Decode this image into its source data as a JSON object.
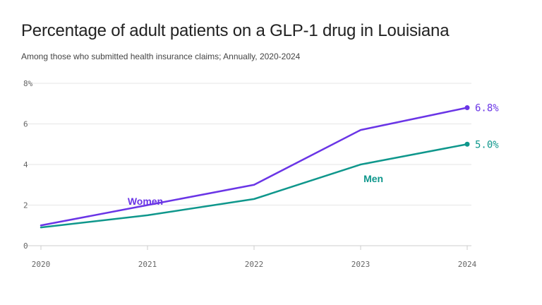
{
  "header": {
    "title": "Percentage of adult patients on a GLP-1 drug in Louisiana",
    "subtitle": "Among those who submitted health insurance claims; Annually, 2020-2024"
  },
  "chart_data": {
    "type": "line",
    "title": "Percentage of adult patients on a GLP-1 drug in Louisiana",
    "subtitle": "Among those who submitted health insurance claims; Annually, 2020-2024",
    "x": [
      2020,
      2021,
      2022,
      2023,
      2024
    ],
    "x_tick_labels": [
      "2020",
      "2021",
      "2022",
      "2023",
      "2024"
    ],
    "y_tick_labels": [
      "0",
      "2",
      "4",
      "6",
      "8%"
    ],
    "ylim": [
      0,
      8
    ],
    "y_ticks": [
      0,
      2,
      4,
      6,
      8
    ],
    "grid": true,
    "series": [
      {
        "name": "Women",
        "color": "#6a35e6",
        "values": [
          1.0,
          2.0,
          3.0,
          5.7,
          6.8
        ],
        "end_label": "6.8%"
      },
      {
        "name": "Men",
        "color": "#0f978c",
        "values": [
          0.9,
          1.5,
          2.3,
          4.0,
          5.0
        ],
        "end_label": "5.0%"
      }
    ]
  }
}
